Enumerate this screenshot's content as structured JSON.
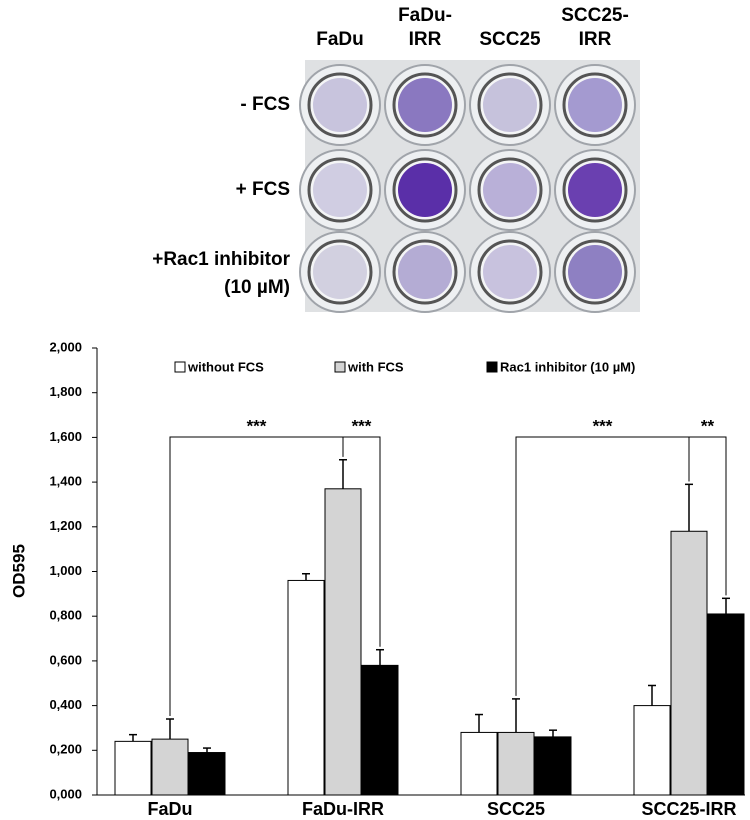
{
  "plate": {
    "columns": [
      [
        "FaDu"
      ],
      [
        "FaDu-",
        "IRR"
      ],
      [
        "SCC25"
      ],
      [
        "SCC25-",
        "IRR"
      ]
    ],
    "rows": [
      [
        "- FCS"
      ],
      [
        "+ FCS"
      ],
      [
        "+Rac1 inhibitor",
        "(10 µM)"
      ]
    ]
  },
  "chart_data": {
    "type": "bar",
    "y_label": "OD595",
    "categories": [
      "FaDu",
      "FaDu-IRR",
      "SCC25",
      "SCC25-IRR"
    ],
    "series": [
      {
        "name": "without FCS",
        "color": "#ffffff",
        "values": [
          0.24,
          0.96,
          0.28,
          0.4
        ],
        "errors": [
          0.03,
          0.03,
          0.08,
          0.09
        ]
      },
      {
        "name": "with FCS",
        "color": "#d4d4d4",
        "values": [
          0.25,
          1.37,
          0.28,
          1.18
        ],
        "errors": [
          0.09,
          0.13,
          0.15,
          0.21
        ]
      },
      {
        "name": "Rac1 inhibitor (10 µM)",
        "color": "#000000",
        "values": [
          0.19,
          0.58,
          0.26,
          0.81
        ],
        "errors": [
          0.02,
          0.07,
          0.03,
          0.07
        ]
      }
    ],
    "ylim": [
      0,
      2
    ],
    "yticks": [
      {
        "value": 0,
        "label": "0,000"
      },
      {
        "value": 0.2,
        "label": "0,200"
      },
      {
        "value": 0.4,
        "label": "0,400"
      },
      {
        "value": 0.6,
        "label": "0,600"
      },
      {
        "value": 0.8,
        "label": "0,800"
      },
      {
        "value": 1,
        "label": "1,000"
      },
      {
        "value": 1.2,
        "label": "1,200"
      },
      {
        "value": 1.4,
        "label": "1,400"
      },
      {
        "value": 1.6,
        "label": "1,600"
      },
      {
        "value": 1.8,
        "label": "1,800"
      },
      {
        "value": 2,
        "label": "2,000"
      }
    ],
    "annotations": [
      "***",
      "***",
      "***",
      "**"
    ]
  }
}
